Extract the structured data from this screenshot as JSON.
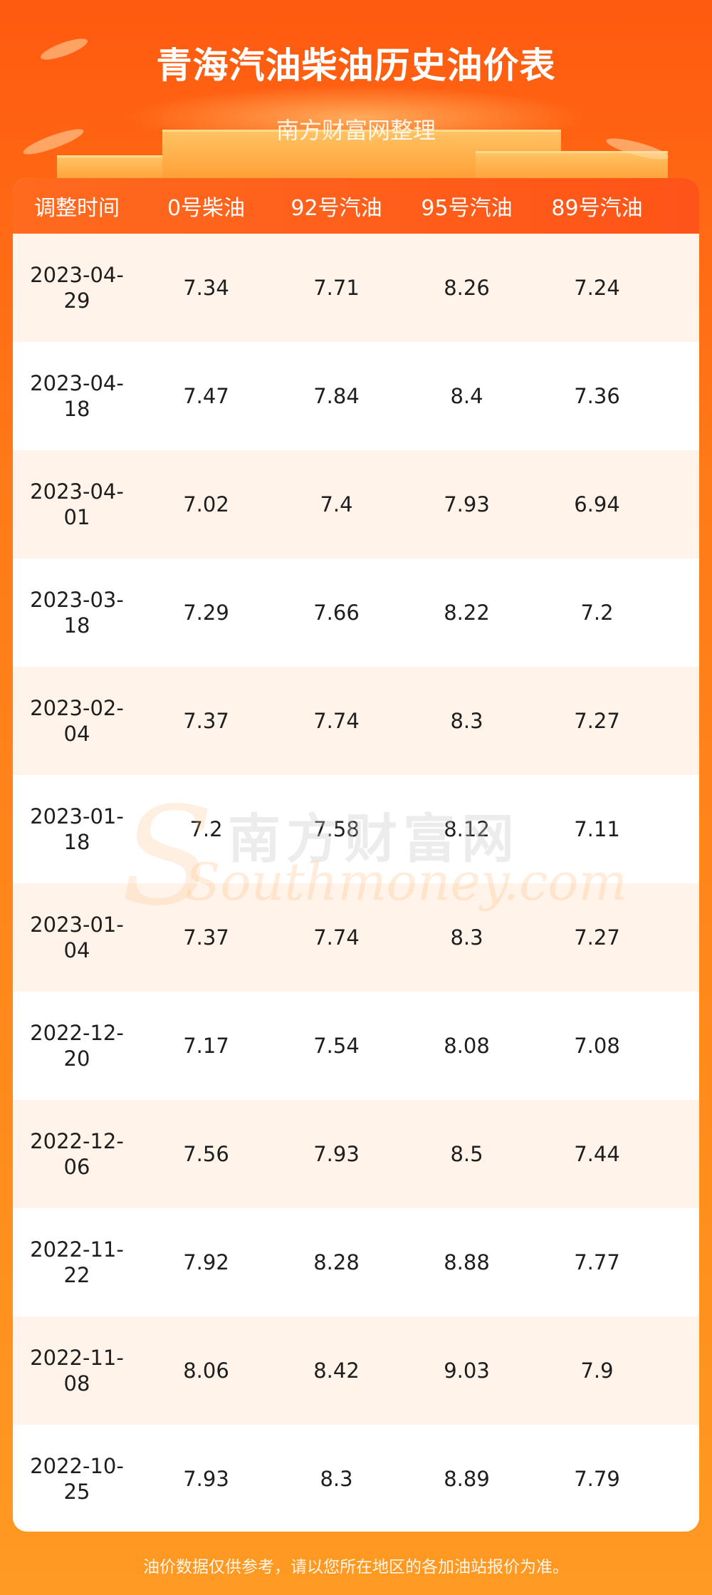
{
  "header": {
    "title": "青海汽油柴油历史油价表",
    "subtitle": "南方财富网整理"
  },
  "table": {
    "columns": [
      "调整时间",
      "0号柴油",
      "92号汽油",
      "95号汽油",
      "89号汽油"
    ],
    "rows": [
      {
        "date": [
          "2023-04-",
          "29"
        ],
        "v": [
          "7.34",
          "7.71",
          "8.26",
          "7.24"
        ]
      },
      {
        "date": [
          "2023-04-",
          "18"
        ],
        "v": [
          "7.47",
          "7.84",
          "8.4",
          "7.36"
        ]
      },
      {
        "date": [
          "2023-04-",
          "01"
        ],
        "v": [
          "7.02",
          "7.4",
          "7.93",
          "6.94"
        ]
      },
      {
        "date": [
          "2023-03-",
          "18"
        ],
        "v": [
          "7.29",
          "7.66",
          "8.22",
          "7.2"
        ]
      },
      {
        "date": [
          "2023-02-",
          "04"
        ],
        "v": [
          "7.37",
          "7.74",
          "8.3",
          "7.27"
        ]
      },
      {
        "date": [
          "2023-01-",
          "18"
        ],
        "v": [
          "7.2",
          "7.58",
          "8.12",
          "7.11"
        ]
      },
      {
        "date": [
          "2023-01-",
          "04"
        ],
        "v": [
          "7.37",
          "7.74",
          "8.3",
          "7.27"
        ]
      },
      {
        "date": [
          "2022-12-",
          "20"
        ],
        "v": [
          "7.17",
          "7.54",
          "8.08",
          "7.08"
        ]
      },
      {
        "date": [
          "2022-12-",
          "06"
        ],
        "v": [
          "7.56",
          "7.93",
          "8.5",
          "7.44"
        ]
      },
      {
        "date": [
          "2022-11-",
          "22"
        ],
        "v": [
          "7.92",
          "8.28",
          "8.88",
          "7.77"
        ]
      },
      {
        "date": [
          "2022-11-",
          "08"
        ],
        "v": [
          "8.06",
          "8.42",
          "9.03",
          "7.9"
        ]
      },
      {
        "date": [
          "2022-10-",
          "25"
        ],
        "v": [
          "7.93",
          "8.3",
          "8.89",
          "7.79"
        ]
      }
    ]
  },
  "watermark": {
    "cn": "南方财富网",
    "en": "Southmoney.com"
  },
  "footer": {
    "note": "油价数据仅供参考，请以您所在地区的各加油站报价为准。"
  },
  "colors": {
    "accent": "#ff5a10",
    "header_row": "#ff5e1a",
    "stripe": "#fff3ea"
  }
}
